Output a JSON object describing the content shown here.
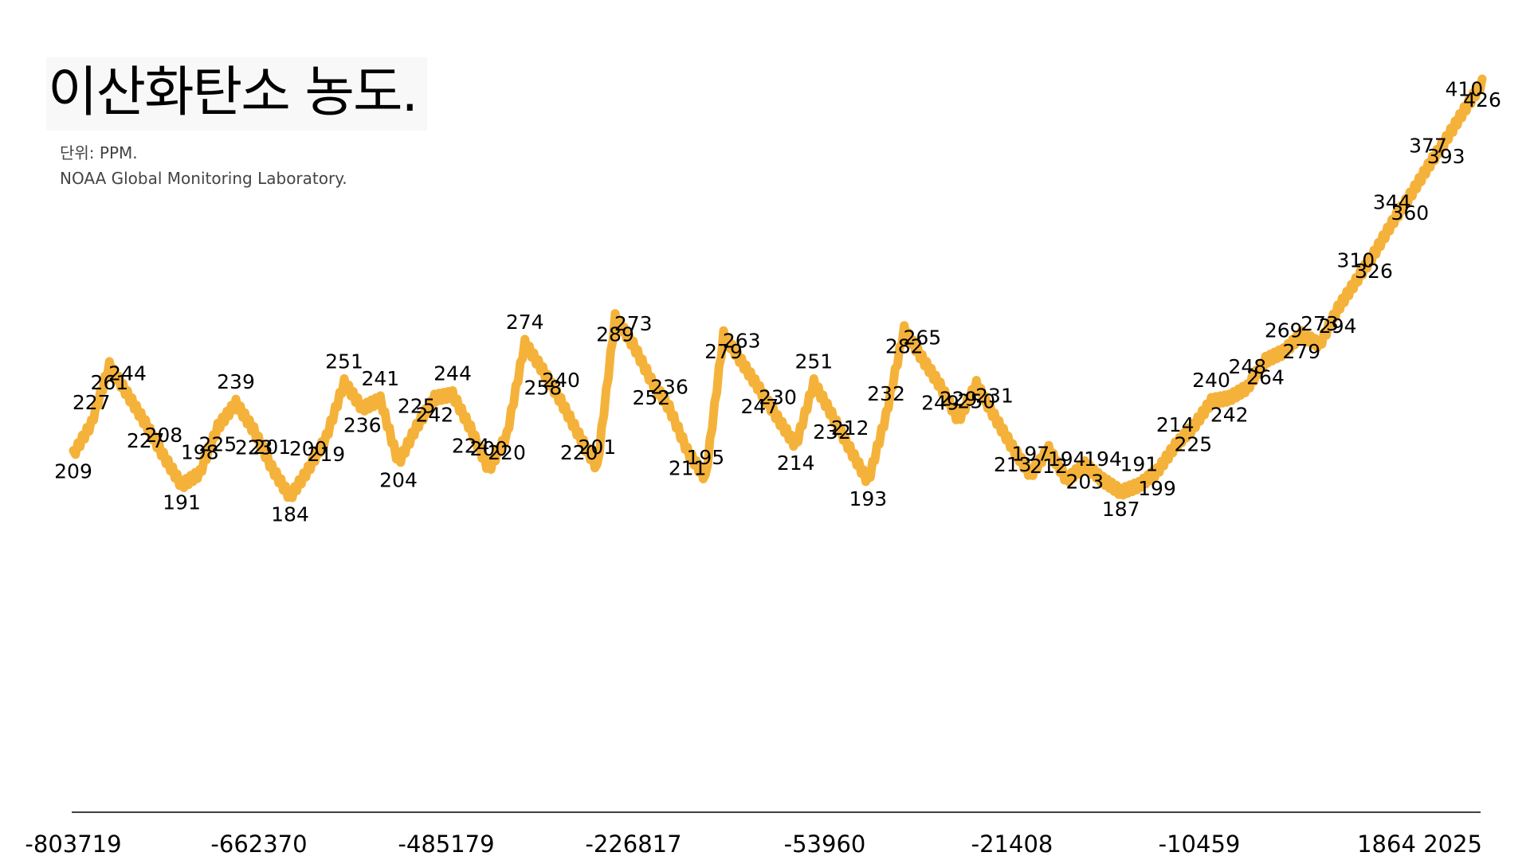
{
  "header": {
    "title": "이산화탄소 농도.",
    "unit_line": "단위: PPM.",
    "source_line": "NOAA Global Monitoring Laboratory."
  },
  "chart_data": {
    "type": "line",
    "title": "이산화탄소 농도.",
    "subtitle": "단위: PPM.",
    "source": "NOAA Global Monitoring Laboratory.",
    "line_color": "#F5B23A",
    "axis_color": "#000000",
    "grid": false,
    "legend": "none",
    "xlabel": "",
    "ylabel": "",
    "ylim": [
      0,
      440
    ],
    "x_axis_ticks": [
      "-803719",
      "-662370",
      "-485179",
      "-226817",
      "-53960",
      "-21408",
      "-10459",
      "1864",
      "2025"
    ],
    "series": [
      {
        "values": [
          209,
          227,
          261,
          244,
          227,
          208,
          191,
          198,
          225,
          239,
          223,
          201,
          184,
          200,
          219,
          251,
          236,
          241,
          204,
          225,
          242,
          244,
          224,
          200,
          220,
          274,
          258,
          240,
          220,
          201,
          289,
          273,
          252,
          236,
          211,
          195,
          279,
          263,
          247,
          230,
          214,
          251,
          232,
          212,
          193,
          232,
          282,
          265,
          249,
          229,
          250,
          231,
          213,
          197,
          212,
          194,
          203,
          194,
          187,
          191,
          199,
          214,
          225,
          240,
          242,
          248,
          264,
          269,
          279,
          273,
          294,
          310,
          326,
          344,
          360,
          377,
          393,
          410,
          426
        ],
        "labels": [
          "209",
          "227",
          "261",
          "244",
          "227",
          "208",
          "191",
          "198",
          "225",
          "239",
          "223",
          "201",
          "184",
          "200",
          "219",
          "251",
          "236",
          "241",
          "204",
          "225",
          "242",
          "244",
          "224",
          "200",
          "220",
          "274",
          "258",
          "240",
          "220",
          "201",
          "289",
          "273",
          "252",
          "236",
          "211",
          "195",
          "279",
          "263",
          "247",
          "230",
          "214",
          "251",
          "232",
          "212",
          "193",
          "232",
          "282",
          "265",
          "249",
          "229",
          "250",
          "231",
          "213",
          "197",
          "212",
          "194",
          "203",
          "194",
          "187",
          "191",
          "199",
          "214",
          "225",
          "240",
          "242",
          "248",
          "264",
          "269",
          "279",
          "273",
          "294",
          "310",
          "326",
          "344",
          "360",
          "377",
          "393",
          "410",
          "426"
        ]
      }
    ]
  }
}
